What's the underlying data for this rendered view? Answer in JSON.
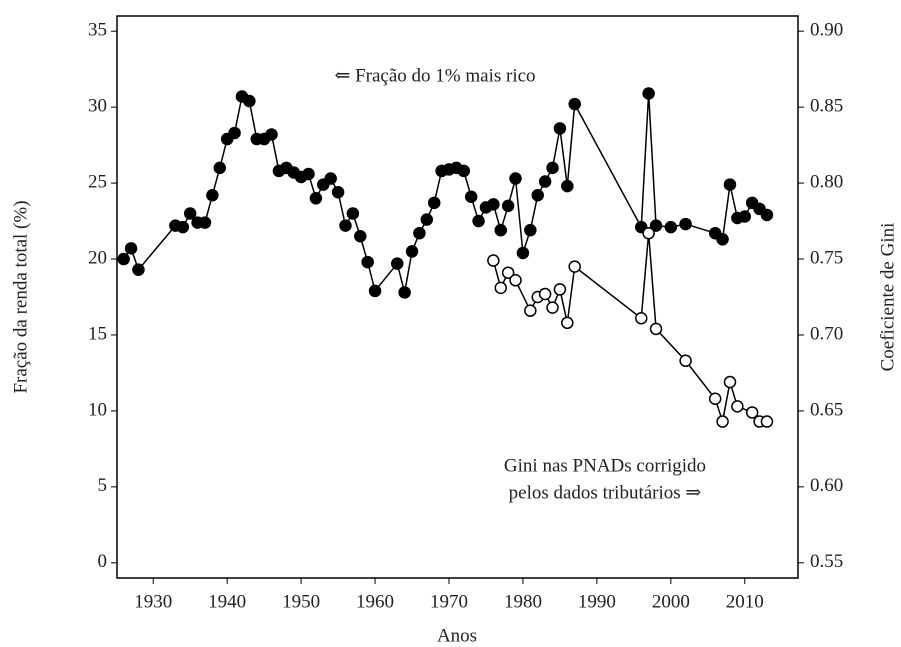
{
  "chart_data": {
    "type": "line",
    "x_label": "Anos",
    "y_label": "Fração da renda total (%)",
    "y2_label": "Coeficiente de Gini",
    "annotations": [
      "⇐ Fração do 1% mais rico",
      "Gini nas PNADs corrigido",
      "pelos dados tributários ⇒"
    ],
    "xlim": [
      1925.1,
      2017.2
    ],
    "xticks": [
      1930,
      1940,
      1950,
      1960,
      1970,
      1980,
      1990,
      2000,
      2010
    ],
    "ylim": [
      -1,
      36
    ],
    "yticks": [
      0,
      5,
      10,
      15,
      20,
      25,
      30,
      35
    ],
    "y2lim": [
      0.54,
      0.91
    ],
    "y2ticks": [
      0.55,
      {
        "value": 0.6,
        "label": "0.60"
      },
      0.65,
      {
        "value": 0.7,
        "label": "0.70"
      },
      0.75,
      {
        "value": 0.8,
        "label": "0.80"
      },
      0.85,
      {
        "value": 0.9,
        "label": "0.90"
      }
    ],
    "grid": true,
    "series": [
      {
        "color": "#000000",
        "marker_fill": "#000000",
        "x": [
          1926,
          1927,
          1928,
          1933,
          1934,
          1935,
          1936,
          1937,
          1938,
          1939,
          1940,
          1941,
          1942,
          1943,
          1944,
          1945,
          1946,
          1947,
          1948,
          1949,
          1950,
          1951,
          1952,
          1953,
          1954,
          1955,
          1956,
          1957,
          1958,
          1959,
          1960,
          1963,
          1964,
          1965,
          1966,
          1967,
          1968,
          1969,
          1970,
          1971,
          1972,
          1973,
          1974,
          1975,
          1976,
          1977,
          1978,
          1979,
          1980,
          1981,
          1982,
          1983,
          1984,
          1985,
          1986,
          1987,
          1996,
          1997,
          1998,
          2000,
          2002,
          2006,
          2007,
          2008,
          2009,
          2010,
          2011,
          2012,
          2013
        ],
        "values": [
          20.0,
          20.7,
          19.3,
          22.2,
          22.1,
          23.0,
          22.4,
          22.4,
          24.2,
          26.0,
          27.9,
          28.3,
          30.7,
          30.4,
          27.9,
          27.9,
          28.2,
          25.8,
          26.0,
          25.7,
          25.4,
          25.6,
          24.0,
          24.9,
          25.3,
          24.4,
          22.2,
          23.0,
          21.5,
          19.8,
          17.9,
          19.7,
          17.8,
          20.5,
          21.7,
          22.6,
          23.7,
          25.8,
          25.9,
          26.0,
          25.8,
          24.1,
          22.5,
          23.4,
          23.6,
          21.9,
          23.5,
          25.3,
          20.4,
          21.9,
          24.2,
          25.1,
          26.0,
          28.6,
          24.8,
          30.2,
          22.1,
          30.9,
          22.2,
          22.1,
          22.3,
          21.7,
          21.3,
          24.9,
          22.7,
          22.8,
          23.7,
          23.3,
          22.9
        ]
      },
      {
        "color": "#000000",
        "marker_fill": "#ffffff",
        "axis": "y2",
        "x": [
          1976,
          1977,
          1978,
          1979,
          1981,
          1982,
          1983,
          1984,
          1985,
          1986,
          1987,
          1996,
          1997,
          1998,
          2002,
          2006,
          2007,
          2008,
          2009,
          2011,
          2012,
          2013
        ],
        "values": [
          0.749,
          0.731,
          0.741,
          0.736,
          0.716,
          0.725,
          0.727,
          0.718,
          0.73,
          0.708,
          0.745,
          0.711,
          0.767,
          0.704,
          0.683,
          0.658,
          0.643,
          0.669,
          0.653,
          0.649,
          0.643,
          0.643
        ]
      }
    ]
  }
}
